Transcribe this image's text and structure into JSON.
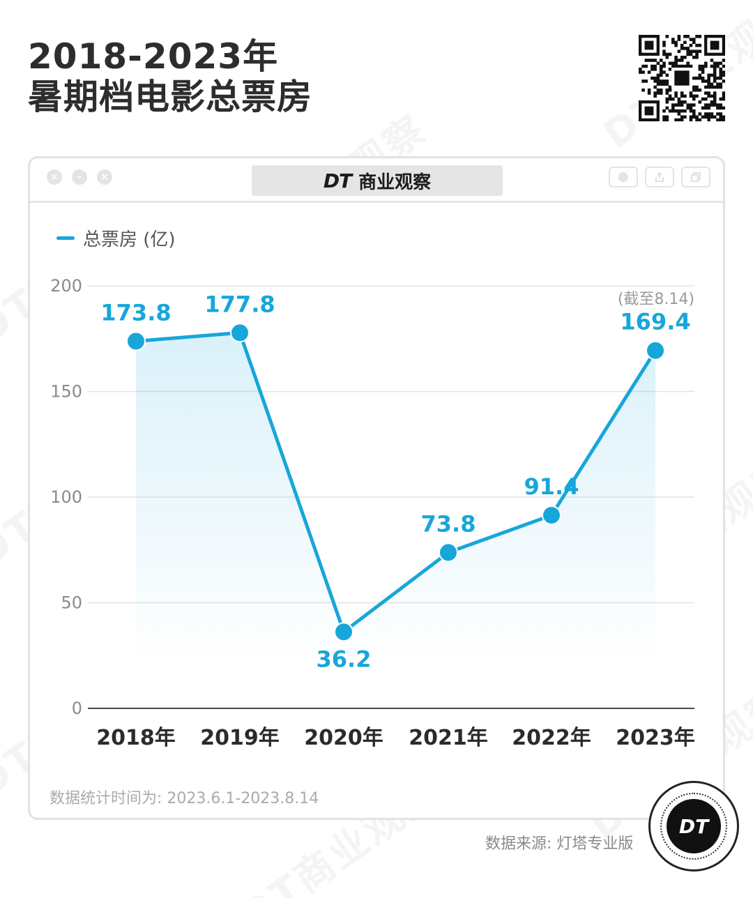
{
  "header": {
    "title_line1": "2018-2023年",
    "title_line2": "暑期档电影总票房"
  },
  "window": {
    "brand_logo": "DT",
    "brand_name": "商业观察"
  },
  "watermark": "DT商业观察",
  "chart_data": {
    "type": "line",
    "categories": [
      "2018年",
      "2019年",
      "2020年",
      "2021年",
      "2022年",
      "2023年"
    ],
    "series": [
      {
        "name": "总票房 (亿)",
        "values": [
          173.8,
          177.8,
          36.2,
          73.8,
          91.4,
          169.4
        ]
      }
    ],
    "value_labels": [
      "173.8",
      "177.8",
      "36.2",
      "73.8",
      "91.4",
      "169.4"
    ],
    "annotation": "(截至8.14)",
    "y_ticks": [
      "0",
      "50",
      "100",
      "150",
      "200"
    ],
    "ylim": [
      0,
      200
    ],
    "grid": true,
    "legend_position": "top-left",
    "line_color": "#17a6da",
    "area_fill": true
  },
  "footnote": "数据统计时间为: 2023.6.1-2023.8.14",
  "source": "数据来源: 灯塔专业版",
  "badge_text": "DT"
}
